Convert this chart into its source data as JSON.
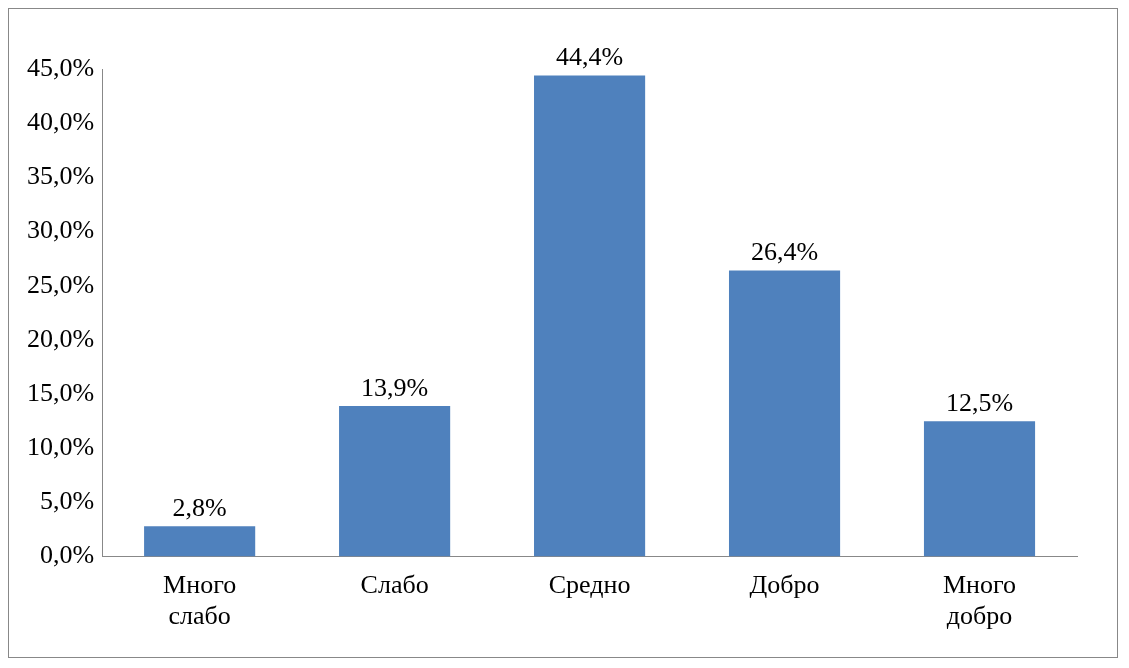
{
  "chart_data": {
    "type": "bar",
    "categories": [
      "Много слабо",
      "Слабо",
      "Средно",
      "Добро",
      "Много добро"
    ],
    "values": [
      2.8,
      13.9,
      44.4,
      26.4,
      12.5
    ],
    "value_labels": [
      "2,8%",
      "13,9%",
      "44,4%",
      "26,4%",
      "12,5%"
    ],
    "color": "#4f81bd",
    "ylim": [
      0,
      45
    ],
    "yticks": [
      {
        "value": 0,
        "label": "0,0%"
      },
      {
        "value": 5,
        "label": "5,0%"
      },
      {
        "value": 10,
        "label": "10,0%"
      },
      {
        "value": 15,
        "label": "15,0%"
      },
      {
        "value": 20,
        "label": "20,0%"
      },
      {
        "value": 25,
        "label": "25,0%"
      },
      {
        "value": 30,
        "label": "30,0%"
      },
      {
        "value": 35,
        "label": "35,0%"
      },
      {
        "value": 40,
        "label": "40,0%"
      },
      {
        "value": 45,
        "label": "45,0%"
      }
    ],
    "grid": false,
    "legend": false
  }
}
